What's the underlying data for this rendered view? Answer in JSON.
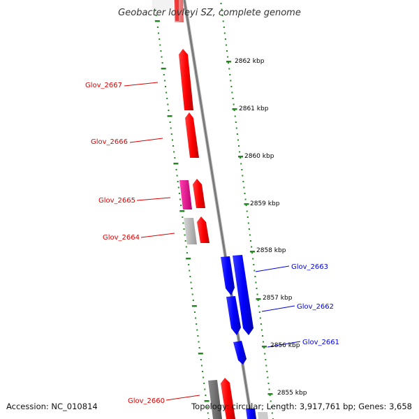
{
  "title": "Geobacter lovleyi SZ, complete genome",
  "footer": {
    "accession": "Accession: NC_010814",
    "topology": "Topology: circular; Length: 3,917,761 bp; Genes: 3,658"
  },
  "scale_labels": [
    "2862 kbp",
    "2861 kbp",
    "2860 kbp",
    "2859 kbp",
    "2858 kbp",
    "2857 kbp",
    "2856 kbp",
    "2855 kbp"
  ],
  "genes": [
    {
      "label": "Glov_2667",
      "strand": "reverse",
      "color": "#dd0000"
    },
    {
      "label": "Glov_2666",
      "strand": "reverse",
      "color": "#dd0000"
    },
    {
      "label": "Glov_2665",
      "strand": "reverse",
      "color": "#dd0000"
    },
    {
      "label": "Glov_2664",
      "strand": "reverse",
      "color": "#dd0000"
    },
    {
      "label": "Glov_2663",
      "strand": "forward",
      "color": "#0000dd"
    },
    {
      "label": "Glov_2662",
      "strand": "forward",
      "color": "#0000dd"
    },
    {
      "label": "Glov_2661",
      "strand": "forward",
      "color": "#0000dd"
    },
    {
      "label": "Glov_2660",
      "strand": "reverse",
      "color": "#dd0000"
    }
  ],
  "colors": {
    "backbone": "#808080",
    "tick": "#228822",
    "reverse_gene": "#ff0000",
    "forward_gene": "#0000ff",
    "other_gene": "#e0008a",
    "pseudo_gene": "#bbbbbb"
  }
}
